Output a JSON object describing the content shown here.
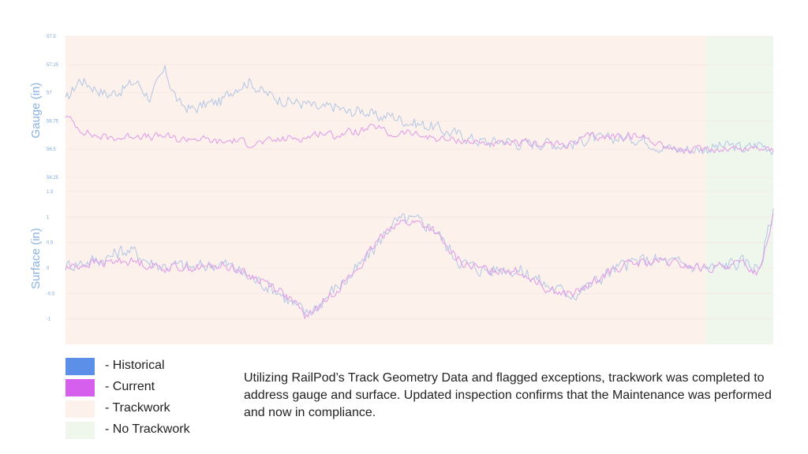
{
  "chart_data": [
    {
      "type": "line",
      "ylabel": "Gauge (in)",
      "ylim": [
        56.25,
        57.5
      ],
      "yticks": [
        {
          "value": 57.5,
          "label": "57.5"
        },
        {
          "value": 57.25,
          "label": "57.25"
        },
        {
          "value": 57,
          "label": "57"
        },
        {
          "value": 56.75,
          "label": "56.75"
        },
        {
          "value": 56.5,
          "label": "56.5"
        },
        {
          "value": 56.25,
          "label": "56.25"
        }
      ],
      "x_range": [
        0,
        1
      ],
      "grid": true,
      "series": [
        {
          "name": "Historical",
          "color": "#b7c9e6",
          "x": [
            0,
            0.02,
            0.04,
            0.06,
            0.08,
            0.1,
            0.12,
            0.14,
            0.16,
            0.18,
            0.2,
            0.22,
            0.24,
            0.26,
            0.28,
            0.3,
            0.32,
            0.34,
            0.36,
            0.38,
            0.4,
            0.42,
            0.44,
            0.46,
            0.48,
            0.5,
            0.52,
            0.54,
            0.56,
            0.58,
            0.6,
            0.62,
            0.64,
            0.66,
            0.68,
            0.7,
            0.72,
            0.74,
            0.76,
            0.78,
            0.8,
            0.82,
            0.84,
            0.86,
            0.88,
            0.9,
            0.92,
            0.94,
            0.96,
            0.98,
            1.0
          ],
          "values": [
            56.92,
            57.12,
            57.05,
            56.98,
            57.03,
            57.1,
            56.95,
            57.2,
            56.9,
            56.85,
            56.9,
            56.92,
            57.05,
            57.1,
            57.0,
            56.95,
            56.92,
            56.9,
            56.85,
            56.88,
            56.82,
            56.85,
            56.78,
            56.8,
            56.75,
            56.72,
            56.7,
            56.65,
            56.62,
            56.58,
            56.56,
            56.58,
            56.55,
            56.55,
            56.56,
            56.54,
            56.55,
            56.6,
            56.58,
            56.6,
            56.6,
            56.58,
            56.52,
            56.5,
            56.5,
            56.5,
            56.52,
            56.53,
            56.5,
            56.55,
            56.5
          ]
        },
        {
          "name": "Current",
          "color": "#e1a0e8",
          "x": [
            0,
            0.02,
            0.04,
            0.06,
            0.08,
            0.1,
            0.12,
            0.14,
            0.16,
            0.18,
            0.2,
            0.22,
            0.24,
            0.26,
            0.28,
            0.3,
            0.32,
            0.34,
            0.36,
            0.38,
            0.4,
            0.42,
            0.44,
            0.46,
            0.48,
            0.5,
            0.52,
            0.54,
            0.56,
            0.58,
            0.6,
            0.62,
            0.64,
            0.66,
            0.68,
            0.7,
            0.72,
            0.74,
            0.76,
            0.78,
            0.8,
            0.82,
            0.84,
            0.86,
            0.88,
            0.9,
            0.92,
            0.94,
            0.96,
            0.98,
            1.0
          ],
          "values": [
            56.8,
            56.68,
            56.62,
            56.6,
            56.6,
            56.63,
            56.6,
            56.62,
            56.58,
            56.6,
            56.58,
            56.56,
            56.58,
            56.55,
            56.56,
            56.58,
            56.6,
            56.6,
            56.65,
            56.62,
            56.65,
            56.66,
            56.7,
            56.62,
            56.65,
            56.62,
            56.6,
            56.58,
            56.58,
            56.56,
            56.55,
            56.54,
            56.55,
            56.55,
            56.55,
            56.54,
            56.55,
            56.62,
            56.6,
            56.62,
            56.62,
            56.6,
            56.55,
            56.5,
            56.48,
            56.5,
            56.5,
            56.51,
            56.5,
            56.52,
            56.5
          ]
        }
      ]
    },
    {
      "type": "line",
      "ylabel": "Surface (in)",
      "ylim": [
        -1.5,
        1.5
      ],
      "yticks": [
        {
          "value": 1.5,
          "label": "1.5"
        },
        {
          "value": 1,
          "label": "1"
        },
        {
          "value": 0.5,
          "label": "0.5"
        },
        {
          "value": 0,
          "label": "0"
        },
        {
          "value": -0.5,
          "label": "-0.5"
        },
        {
          "value": -1,
          "label": "-1"
        }
      ],
      "x_range": [
        0,
        1
      ],
      "grid": true,
      "series": [
        {
          "name": "Historical",
          "color": "#b7c9e6",
          "x": [
            0,
            0.02,
            0.04,
            0.06,
            0.08,
            0.1,
            0.12,
            0.14,
            0.16,
            0.18,
            0.2,
            0.22,
            0.24,
            0.26,
            0.28,
            0.3,
            0.32,
            0.34,
            0.36,
            0.38,
            0.4,
            0.42,
            0.44,
            0.46,
            0.48,
            0.5,
            0.52,
            0.54,
            0.56,
            0.58,
            0.6,
            0.62,
            0.64,
            0.66,
            0.68,
            0.7,
            0.72,
            0.74,
            0.76,
            0.78,
            0.8,
            0.82,
            0.84,
            0.86,
            0.88,
            0.9,
            0.92,
            0.94,
            0.96,
            0.98,
            1.0
          ],
          "values": [
            0.05,
            0.1,
            0.15,
            0.2,
            0.35,
            0.3,
            0.1,
            0.05,
            0.05,
            0.0,
            0.05,
            0.1,
            0.0,
            -0.2,
            -0.3,
            -0.45,
            -0.7,
            -0.9,
            -0.7,
            -0.4,
            -0.2,
            0.1,
            0.45,
            0.85,
            0.95,
            0.9,
            0.8,
            0.4,
            0.1,
            0.0,
            -0.05,
            0.0,
            -0.05,
            -0.15,
            -0.35,
            -0.45,
            -0.5,
            -0.35,
            -0.15,
            0.0,
            0.1,
            0.15,
            0.15,
            0.1,
            0.05,
            0.0,
            0.0,
            0.1,
            0.1,
            0.0,
            1.1
          ]
        },
        {
          "name": "Current",
          "color": "#e1a0e8",
          "x": [
            0,
            0.02,
            0.04,
            0.06,
            0.08,
            0.1,
            0.12,
            0.14,
            0.16,
            0.18,
            0.2,
            0.22,
            0.24,
            0.26,
            0.28,
            0.3,
            0.32,
            0.34,
            0.36,
            0.38,
            0.4,
            0.42,
            0.44,
            0.46,
            0.48,
            0.5,
            0.52,
            0.54,
            0.56,
            0.58,
            0.6,
            0.62,
            0.64,
            0.66,
            0.68,
            0.7,
            0.72,
            0.74,
            0.76,
            0.78,
            0.8,
            0.82,
            0.84,
            0.86,
            0.88,
            0.9,
            0.92,
            0.94,
            0.96,
            0.98,
            1.0
          ],
          "values": [
            0.0,
            0.05,
            0.1,
            0.1,
            0.15,
            0.12,
            0.05,
            0.0,
            0.02,
            0.0,
            0.02,
            0.05,
            0.0,
            -0.15,
            -0.25,
            -0.4,
            -0.65,
            -0.95,
            -0.75,
            -0.45,
            -0.2,
            0.1,
            0.5,
            0.85,
            0.9,
            0.88,
            0.75,
            0.35,
            0.1,
            0.0,
            -0.05,
            0.0,
            -0.08,
            -0.2,
            -0.4,
            -0.5,
            -0.5,
            -0.35,
            -0.15,
            0.0,
            0.08,
            0.1,
            0.12,
            0.08,
            0.03,
            0.0,
            0.0,
            0.08,
            0.05,
            -0.1,
            1.05
          ]
        }
      ]
    }
  ],
  "regions": [
    {
      "name": "Trackwork",
      "from": 0,
      "to": 0.905,
      "color": "#fdf1ec"
    },
    {
      "name": "No Trackwork",
      "from": 0.905,
      "to": 1.0,
      "color": "#eff7ec"
    }
  ],
  "legend": [
    {
      "label": "- Historical",
      "color": "#5b8fe8"
    },
    {
      "label": "- Current",
      "color": "#d75fee"
    },
    {
      "label": "- Trackwork",
      "color": "#fdf1ec"
    },
    {
      "label": "- No Trackwork",
      "color": "#eff7ec"
    }
  ],
  "note": "Utilizing RailPod’s Track Geometry Data and flagged exceptions, trackwork was completed to address gauge and surface. Updated inspection confirms that the Maintenance was performed and now in compliance."
}
